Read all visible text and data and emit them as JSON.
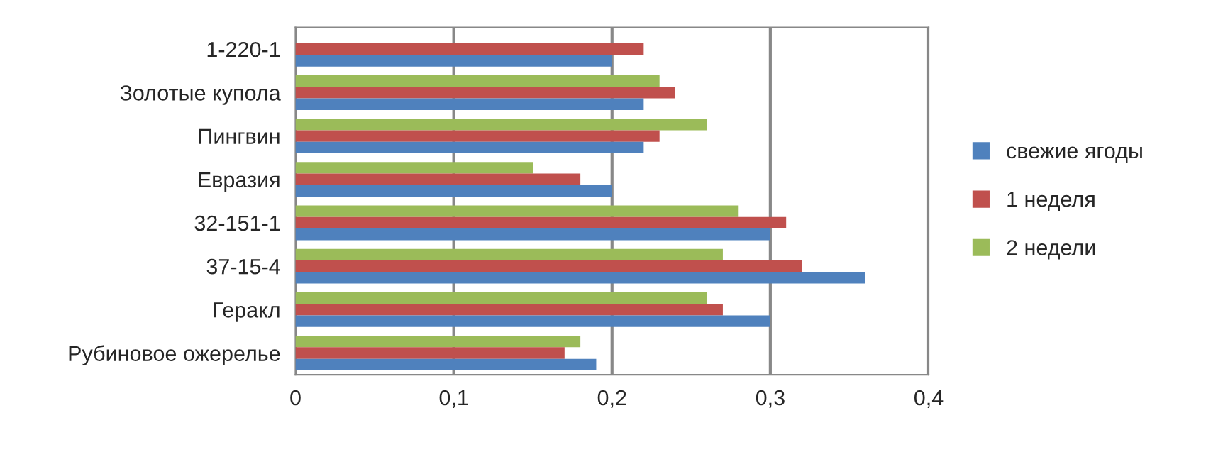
{
  "chart_data": {
    "type": "bar",
    "orientation": "horizontal",
    "categories": [
      "1-220-1",
      "Золотые купола",
      "Пингвин",
      "Евразия",
      "32-151-1",
      "37-15-4",
      "Геракл",
      "Рубиновое ожерелье"
    ],
    "series": [
      {
        "name": "2 недели",
        "color": "#9bbb59",
        "values": [
          null,
          0.23,
          0.26,
          0.15,
          0.28,
          0.27,
          0.26,
          0.18
        ]
      },
      {
        "name": "1 неделя",
        "color": "#c0504d",
        "values": [
          0.22,
          0.24,
          0.23,
          0.18,
          0.31,
          0.32,
          0.27,
          0.17
        ]
      },
      {
        "name": "свежие ягоды",
        "color": "#4f81bd",
        "values": [
          0.2,
          0.22,
          0.22,
          0.2,
          0.3,
          0.36,
          0.3,
          0.19
        ]
      }
    ],
    "xlim": [
      0,
      0.4
    ],
    "xticks": [
      0,
      {
        "value": 0.1,
        "label": "0,1"
      },
      {
        "value": 0.2,
        "label": "0,2"
      },
      {
        "value": 0.3,
        "label": "0,3"
      },
      {
        "value": 0.4,
        "label": "0,4"
      }
    ],
    "grid": "x",
    "legend": "right"
  }
}
